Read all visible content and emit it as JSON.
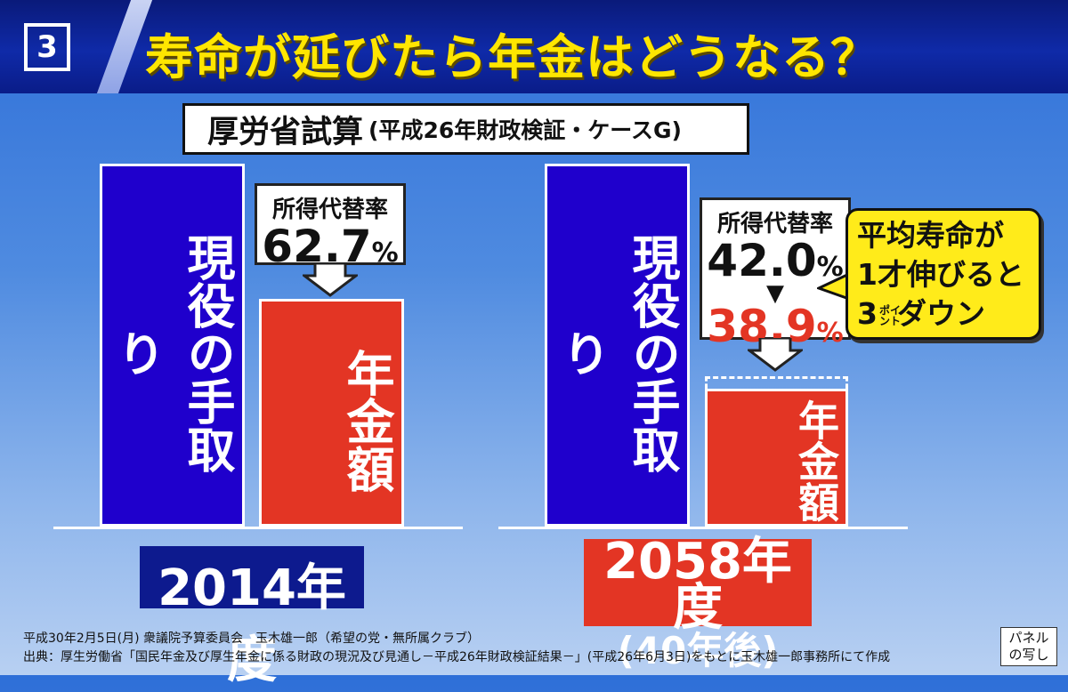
{
  "header": {
    "panel_number": "3",
    "title": "寿命が延びたら年金はどうなる？"
  },
  "subtitle": {
    "main": "厚労省試算",
    "sub": "(平成26年財政検証・ケースG)"
  },
  "chart_data": [
    {
      "type": "bar",
      "title": "",
      "period": "2014年度",
      "categories": [
        "現役の手取り",
        "年金額"
      ],
      "replacement_rate_label": "所得代替率",
      "replacement_rate": 62.7,
      "replacement_rate_text": "62.7",
      "unit": "%",
      "colors": [
        "#1f00cc",
        "#e33524"
      ]
    },
    {
      "type": "bar",
      "title": "",
      "period": "2058年度",
      "period_note": "(40年後)",
      "categories": [
        "現役の手取り",
        "年金額"
      ],
      "replacement_rate_label": "所得代替率",
      "replacement_rate": 42.0,
      "replacement_rate_text": "42.0",
      "adjusted_rate": 38.9,
      "adjusted_rate_text": "38.9",
      "unit": "%",
      "colors": [
        "#1f00cc",
        "#e33524"
      ]
    }
  ],
  "speech_bubble": {
    "line1": "平均寿命が",
    "line2": "1才伸びると",
    "line3_num": "3",
    "line3_ruby_top": "ポイ",
    "line3_ruby_bottom": "ント",
    "line3_rest": "ダウン"
  },
  "footnotes": {
    "line1": "平成30年2月5日(月) 衆議院予算委員会　玉木雄一郎（希望の党・無所属クラブ）",
    "line2": "出典：厚生労働省「国民年金及び厚生年金に係る財政の現況及び見通し－平成26年財政検証結果－」(平成26年6月3日)をもとに玉木雄一郎事務所にて作成"
  },
  "panel_copy": {
    "line1": "パネル",
    "line2": "の写し"
  },
  "colors": {
    "title_yellow": "#ffe600",
    "blue_bar": "#1f00cc",
    "red_bar": "#e33524",
    "red_text": "#e33524",
    "bubble_yellow": "#ffeb1a"
  }
}
